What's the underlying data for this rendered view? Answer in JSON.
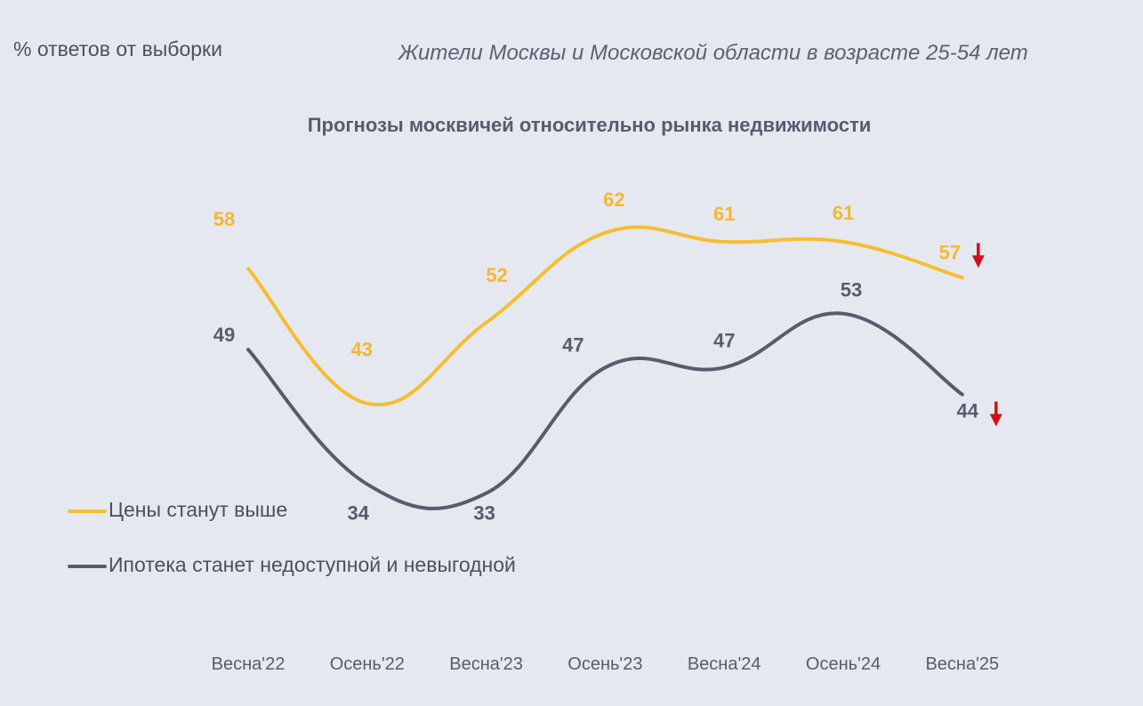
{
  "header": {
    "unit_note": "% ответов от выборки",
    "sample_note": "Жители Москвы и Московской области в возрасте 25-54 лет"
  },
  "chart_data": {
    "type": "line",
    "title": "Прогнозы москвичей относительно рынка недвижимости",
    "xlabel": "",
    "ylabel": "",
    "categories": [
      "Весна'22",
      "Осень'22",
      "Весна'23",
      "Осень'23",
      "Весна'24",
      "Осень'24",
      "Весна'25"
    ],
    "series": [
      {
        "name": "Цены станут выше",
        "values": [
          58,
          43,
          52,
          62,
          61,
          61,
          57
        ],
        "color": "#f5be32",
        "label_color": "#f5b731",
        "last_point_trend": "down"
      },
      {
        "name": "Ипотека станет недоступной и невыгодной",
        "values": [
          49,
          34,
          33,
          47,
          47,
          53,
          44
        ],
        "color": "#565c6e",
        "label_color": "#565c6e",
        "last_point_trend": "down"
      }
    ],
    "trend_arrow_color": "#d0111b",
    "ylim": [
      20,
      75
    ],
    "grid": false,
    "legend_position": "bottom-left"
  }
}
